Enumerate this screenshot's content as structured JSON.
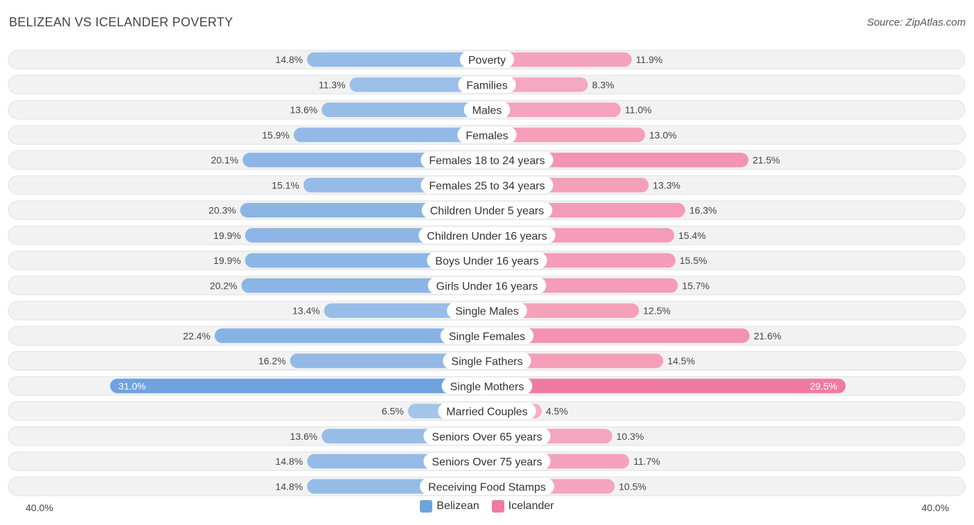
{
  "title": "BELIZEAN VS ICELANDER POVERTY",
  "source": "Source: ZipAtlas.com",
  "colors": {
    "belizean": "#6fa3de",
    "icelander": "#f07aa0",
    "belizean_light": "#a9c9ee",
    "icelander_light": "#f7a9c3"
  },
  "chart_data": {
    "type": "bar",
    "orientation": "horizontal-diverging",
    "title": "BELIZEAN VS ICELANDER POVERTY",
    "categories": [
      "Poverty",
      "Families",
      "Males",
      "Females",
      "Females 18 to 24 years",
      "Females 25 to 34 years",
      "Children Under 5 years",
      "Children Under 16 years",
      "Boys Under 16 years",
      "Girls Under 16 years",
      "Single Males",
      "Single Females",
      "Single Fathers",
      "Single Mothers",
      "Married Couples",
      "Seniors Over 65 years",
      "Seniors Over 75 years",
      "Receiving Food Stamps"
    ],
    "series": [
      {
        "name": "Belizean",
        "values": [
          14.8,
          11.3,
          13.6,
          15.9,
          20.1,
          15.1,
          20.3,
          19.9,
          19.9,
          20.2,
          13.4,
          22.4,
          16.2,
          31.0,
          6.5,
          13.6,
          14.8,
          14.8
        ]
      },
      {
        "name": "Icelander",
        "values": [
          11.9,
          8.3,
          11.0,
          13.0,
          21.5,
          13.3,
          16.3,
          15.4,
          15.5,
          15.7,
          12.5,
          21.6,
          14.5,
          29.5,
          4.5,
          10.3,
          11.7,
          10.5
        ]
      }
    ],
    "value_labels": {
      "Belizean": [
        "14.8%",
        "11.3%",
        "13.6%",
        "15.9%",
        "20.1%",
        "15.1%",
        "20.3%",
        "19.9%",
        "19.9%",
        "20.2%",
        "13.4%",
        "22.4%",
        "16.2%",
        "31.0%",
        "6.5%",
        "13.6%",
        "14.8%",
        "14.8%"
      ],
      "Icelander": [
        "11.9%",
        "8.3%",
        "11.0%",
        "13.0%",
        "21.5%",
        "13.3%",
        "16.3%",
        "15.4%",
        "15.5%",
        "15.7%",
        "12.5%",
        "21.6%",
        "14.5%",
        "29.5%",
        "4.5%",
        "10.3%",
        "11.7%",
        "10.5%"
      ]
    },
    "xlim": [
      -40,
      40
    ],
    "axis_left_label": "40.0%",
    "axis_right_label": "40.0%",
    "legend": [
      "Belizean",
      "Icelander"
    ],
    "legend_position": "bottom-center"
  }
}
